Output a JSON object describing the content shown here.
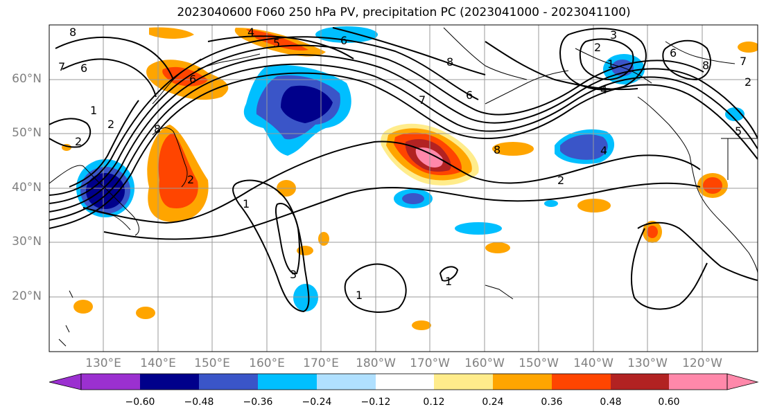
{
  "title": "2023040600 F060 250 hPa PV, precipitation PC (2023041000 - 2023041100)",
  "latitude_labels": [
    "60°N",
    "50°N",
    "40°N",
    "30°N",
    "20°N"
  ],
  "longitude_labels": [
    "130°E",
    "140°E",
    "150°E",
    "160°E",
    "170°E",
    "180°W",
    "170°W",
    "160°W",
    "150°W",
    "140°W",
    "130°W",
    "120°W"
  ],
  "contour_labels": [
    "8",
    "6",
    "7",
    "1",
    "2",
    "8",
    "6",
    "4",
    "5",
    "6",
    "8",
    "7",
    "6",
    "8",
    "3",
    "2",
    "1",
    "4",
    "2",
    "6",
    "8",
    "7",
    "2",
    "5",
    "1",
    "3",
    "1",
    "1",
    "4",
    "2",
    "2"
  ],
  "colorbar": {
    "ticks": [
      "−0.60",
      "−0.48",
      "−0.36",
      "−0.24",
      "−0.12",
      "0.12",
      "0.24",
      "0.36",
      "0.48",
      "0.60"
    ],
    "colors": [
      "#9b30d0",
      "#00008b",
      "#3a55c8",
      "#00bfff",
      "#b0e0ff",
      "#ffffff",
      "#ffec8b",
      "#ffa500",
      "#ff4500",
      "#b22222",
      "#ff88aa"
    ]
  }
}
